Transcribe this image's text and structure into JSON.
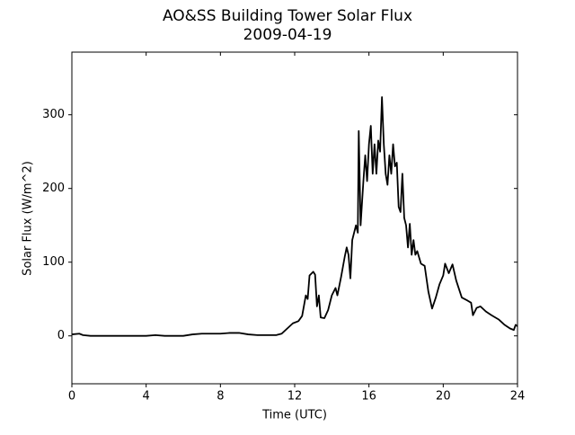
{
  "chart_data": {
    "type": "line",
    "title": "AO&SS Building Tower Solar Flux",
    "subtitle": "2009-04-19",
    "x_label": "Time (UTC)",
    "y_label": "Solar Flux (W/m^2)",
    "xlim": [
      0,
      24
    ],
    "xticks": [
      0,
      4,
      8,
      12,
      16,
      20,
      24
    ],
    "ylim": [
      -65,
      385
    ],
    "yticks": [
      0,
      100,
      200,
      300
    ],
    "series": [
      {
        "color": "#000000",
        "x": [
          0,
          0.4,
          0.6,
          1,
          4,
          4.5,
          5,
          6,
          6.5,
          7,
          8,
          8.5,
          9,
          9.5,
          10,
          11,
          11.3,
          11.6,
          11.9,
          12.2,
          12.4,
          12.6,
          12.7,
          12.8,
          13.0,
          13.1,
          13.2,
          13.3,
          13.4,
          13.6,
          13.8,
          14.0,
          14.2,
          14.3,
          14.5,
          14.7,
          14.8,
          14.9,
          15.0,
          15.1,
          15.3,
          15.4,
          15.45,
          15.55,
          15.7,
          15.8,
          15.9,
          16.0,
          16.1,
          16.2,
          16.3,
          16.4,
          16.5,
          16.6,
          16.7,
          16.8,
          16.9,
          17.0,
          17.1,
          17.2,
          17.3,
          17.4,
          17.5,
          17.6,
          17.7,
          17.8,
          17.9,
          18.0,
          18.1,
          18.2,
          18.3,
          18.4,
          18.5,
          18.6,
          18.8,
          19.0,
          19.2,
          19.4,
          19.6,
          19.8,
          20.0,
          20.1,
          20.3,
          20.5,
          20.7,
          21.0,
          21.3,
          21.5,
          21.6,
          21.8,
          22.0,
          22.3,
          22.6,
          23.0,
          23.3,
          23.6,
          23.8,
          23.9,
          24
        ],
        "values": [
          2,
          3,
          1,
          0,
          0,
          1,
          0,
          0,
          2,
          3,
          3,
          4,
          4,
          2,
          1,
          1,
          3,
          10,
          17,
          20,
          27,
          55,
          50,
          82,
          87,
          83,
          40,
          55,
          25,
          24,
          35,
          55,
          65,
          55,
          80,
          108,
          120,
          110,
          78,
          130,
          150,
          140,
          278,
          150,
          210,
          245,
          210,
          260,
          285,
          220,
          260,
          220,
          265,
          250,
          324,
          260,
          220,
          205,
          245,
          220,
          260,
          230,
          235,
          175,
          168,
          220,
          160,
          150,
          120,
          152,
          110,
          130,
          110,
          115,
          98,
          95,
          60,
          37,
          52,
          70,
          82,
          98,
          85,
          97,
          75,
          52,
          48,
          45,
          28,
          38,
          40,
          33,
          28,
          22,
          15,
          10,
          8,
          15,
          13
        ]
      }
    ]
  }
}
